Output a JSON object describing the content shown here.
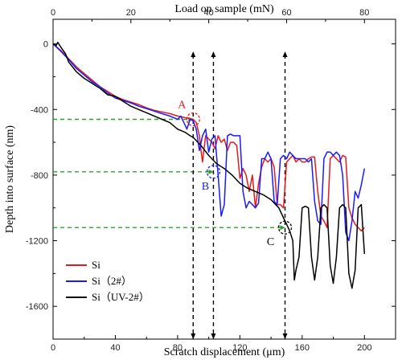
{
  "chart_data": {
    "type": "line",
    "xlabel": "Scratch displacement (μm)",
    "top_xlabel": "Load on sample (mN)",
    "ylabel": "Depth into surface (nm)",
    "xlim": [
      0,
      220
    ],
    "top_xlim": [
      0,
      88
    ],
    "ylim": [
      -1800,
      150
    ],
    "x_ticks": [
      0,
      40,
      80,
      120,
      160,
      200
    ],
    "top_x_ticks": [
      0,
      20,
      40,
      60,
      80
    ],
    "y_ticks": [
      0,
      -400,
      -800,
      -1200,
      -1600
    ],
    "legend_position": "bottom-left",
    "series": [
      {
        "name": "Si",
        "color": "#e41a1c",
        "points": [
          [
            0,
            0
          ],
          [
            5,
            -40
          ],
          [
            10,
            -90
          ],
          [
            15,
            -140
          ],
          [
            20,
            -180
          ],
          [
            25,
            -220
          ],
          [
            30,
            -260
          ],
          [
            35,
            -290
          ],
          [
            40,
            -320
          ],
          [
            45,
            -340
          ],
          [
            50,
            -355
          ],
          [
            55,
            -370
          ],
          [
            60,
            -390
          ],
          [
            65,
            -405
          ],
          [
            70,
            -415
          ],
          [
            75,
            -425
          ],
          [
            80,
            -440
          ],
          [
            85,
            -450
          ],
          [
            88,
            -455
          ],
          [
            90,
            -460
          ],
          [
            92,
            -480
          ],
          [
            94,
            -560
          ],
          [
            95,
            -650
          ],
          [
            96,
            -720
          ],
          [
            97,
            -640
          ],
          [
            98,
            -560
          ],
          [
            100,
            -580
          ],
          [
            102,
            -600
          ],
          [
            104,
            -640
          ],
          [
            106,
            -560
          ],
          [
            108,
            -600
          ],
          [
            110,
            -580
          ],
          [
            112,
            -650
          ],
          [
            114,
            -600
          ],
          [
            116,
            -600
          ],
          [
            118,
            -620
          ],
          [
            120,
            -820
          ],
          [
            122,
            -760
          ],
          [
            124,
            -800
          ],
          [
            126,
            -900
          ],
          [
            128,
            -800
          ],
          [
            130,
            -1000
          ],
          [
            132,
            -850
          ],
          [
            134,
            -750
          ],
          [
            136,
            -700
          ],
          [
            138,
            -720
          ],
          [
            140,
            -700
          ],
          [
            142,
            -750
          ],
          [
            144,
            -980
          ],
          [
            146,
            -980
          ],
          [
            148,
            -1000
          ],
          [
            150,
            -720
          ],
          [
            152,
            -700
          ],
          [
            154,
            -680
          ],
          [
            156,
            -720
          ],
          [
            158,
            -700
          ],
          [
            160,
            -720
          ],
          [
            162,
            -720
          ],
          [
            164,
            -700
          ],
          [
            166,
            -690
          ],
          [
            168,
            -690
          ],
          [
            170,
            -900
          ],
          [
            172,
            -1050
          ],
          [
            174,
            -1080
          ],
          [
            176,
            -1120
          ],
          [
            178,
            -700
          ],
          [
            180,
            -680
          ],
          [
            182,
            -700
          ],
          [
            184,
            -720
          ],
          [
            186,
            -680
          ],
          [
            188,
            -690
          ],
          [
            190,
            -1000
          ],
          [
            192,
            -1060
          ],
          [
            194,
            -1100
          ],
          [
            196,
            -1120
          ],
          [
            198,
            -1140
          ],
          [
            200,
            -1120
          ]
        ]
      },
      {
        "name": "Si（2#）",
        "color": "#1a1aff",
        "points": [
          [
            0,
            0
          ],
          [
            5,
            -45
          ],
          [
            10,
            -95
          ],
          [
            15,
            -150
          ],
          [
            20,
            -190
          ],
          [
            25,
            -230
          ],
          [
            30,
            -260
          ],
          [
            35,
            -300
          ],
          [
            40,
            -330
          ],
          [
            45,
            -345
          ],
          [
            50,
            -360
          ],
          [
            55,
            -380
          ],
          [
            60,
            -395
          ],
          [
            65,
            -410
          ],
          [
            70,
            -425
          ],
          [
            75,
            -440
          ],
          [
            80,
            -460
          ],
          [
            82,
            -440
          ],
          [
            84,
            -480
          ],
          [
            86,
            -520
          ],
          [
            88,
            -460
          ],
          [
            90,
            -470
          ],
          [
            92,
            -520
          ],
          [
            94,
            -650
          ],
          [
            96,
            -560
          ],
          [
            98,
            -520
          ],
          [
            100,
            -660
          ],
          [
            102,
            -580
          ],
          [
            104,
            -560
          ],
          [
            106,
            -800
          ],
          [
            108,
            -1050
          ],
          [
            110,
            -980
          ],
          [
            112,
            -560
          ],
          [
            114,
            -550
          ],
          [
            116,
            -560
          ],
          [
            118,
            -560
          ],
          [
            120,
            -560
          ],
          [
            122,
            -900
          ],
          [
            124,
            -1000
          ],
          [
            126,
            -960
          ],
          [
            128,
            -980
          ],
          [
            130,
            -1000
          ],
          [
            132,
            -970
          ],
          [
            134,
            -700
          ],
          [
            136,
            -700
          ],
          [
            138,
            -660
          ],
          [
            140,
            -700
          ],
          [
            142,
            -960
          ],
          [
            144,
            -980
          ],
          [
            146,
            -700
          ],
          [
            148,
            -680
          ],
          [
            150,
            -700
          ],
          [
            152,
            -660
          ],
          [
            154,
            -680
          ],
          [
            156,
            -700
          ],
          [
            160,
            -700
          ],
          [
            162,
            -700
          ],
          [
            164,
            -720
          ],
          [
            166,
            -700
          ],
          [
            168,
            -960
          ],
          [
            170,
            -1080
          ],
          [
            172,
            -1100
          ],
          [
            174,
            -700
          ],
          [
            176,
            -660
          ],
          [
            178,
            -660
          ],
          [
            180,
            -680
          ],
          [
            182,
            -660
          ],
          [
            184,
            -680
          ],
          [
            186,
            -800
          ],
          [
            188,
            -1150
          ],
          [
            190,
            -1200
          ],
          [
            192,
            -1080
          ],
          [
            194,
            -900
          ],
          [
            196,
            -940
          ],
          [
            198,
            -860
          ],
          [
            200,
            -760
          ]
        ]
      },
      {
        "name": "Si（UV-2#）",
        "color": "#000000",
        "points": [
          [
            0,
            0
          ],
          [
            2,
            -10
          ],
          [
            3,
            10
          ],
          [
            5,
            -20
          ],
          [
            8,
            -60
          ],
          [
            10,
            -110
          ],
          [
            15,
            -170
          ],
          [
            20,
            -210
          ],
          [
            25,
            -240
          ],
          [
            30,
            -270
          ],
          [
            35,
            -310
          ],
          [
            40,
            -320
          ],
          [
            45,
            -350
          ],
          [
            50,
            -380
          ],
          [
            55,
            -400
          ],
          [
            60,
            -420
          ],
          [
            65,
            -440
          ],
          [
            70,
            -460
          ],
          [
            75,
            -480
          ],
          [
            80,
            -520
          ],
          [
            85,
            -540
          ],
          [
            88,
            -560
          ],
          [
            90,
            -570
          ],
          [
            95,
            -620
          ],
          [
            100,
            -680
          ],
          [
            105,
            -730
          ],
          [
            110,
            -760
          ],
          [
            115,
            -800
          ],
          [
            120,
            -850
          ],
          [
            125,
            -880
          ],
          [
            130,
            -900
          ],
          [
            135,
            -920
          ],
          [
            140,
            -950
          ],
          [
            145,
            -1000
          ],
          [
            148,
            -1060
          ],
          [
            150,
            -1100
          ],
          [
            152,
            -1140
          ],
          [
            154,
            -1200
          ],
          [
            155,
            -1440
          ],
          [
            156,
            -1380
          ],
          [
            158,
            -1300
          ],
          [
            160,
            -1000
          ],
          [
            162,
            -990
          ],
          [
            164,
            -1000
          ],
          [
            166,
            -1300
          ],
          [
            168,
            -1440
          ],
          [
            170,
            -1300
          ],
          [
            172,
            -1000
          ],
          [
            174,
            -980
          ],
          [
            176,
            -1000
          ],
          [
            178,
            -1350
          ],
          [
            180,
            -1460
          ],
          [
            182,
            -1300
          ],
          [
            184,
            -1000
          ],
          [
            186,
            -980
          ],
          [
            188,
            -1000
          ],
          [
            190,
            -1400
          ],
          [
            192,
            -1490
          ],
          [
            194,
            -1380
          ],
          [
            196,
            -1000
          ],
          [
            198,
            -980
          ],
          [
            200,
            -1280
          ]
        ]
      }
    ],
    "annotations": [
      {
        "label": "A",
        "x": 90,
        "y": -460,
        "color": "#e41a1c"
      },
      {
        "label": "B",
        "x": 103,
        "y": -780,
        "color": "#1a1aff"
      },
      {
        "label": "C",
        "x": 149,
        "y": -1120,
        "color": "#000000"
      }
    ],
    "vertical_guides": [
      90,
      103,
      149
    ],
    "horizontal_guides": [
      -460,
      -780,
      -1120
    ],
    "guide_colors": {
      "vertical": "#000000",
      "horizontal": "#2ca02c"
    }
  }
}
